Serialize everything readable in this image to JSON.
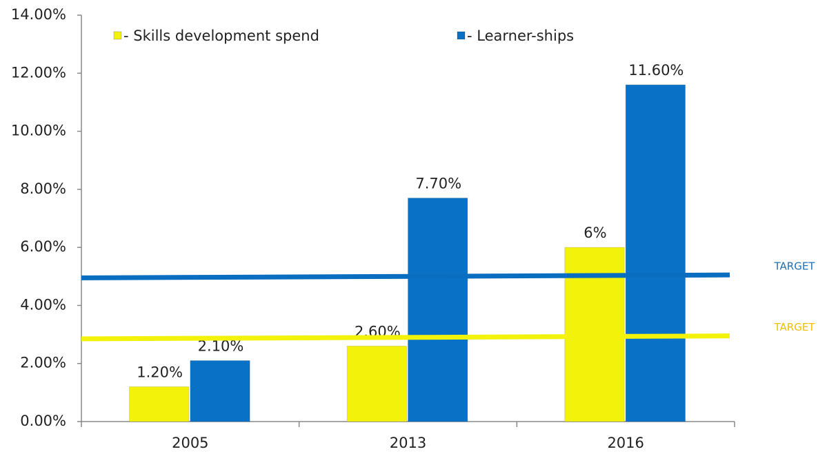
{
  "chart_data": {
    "type": "bar",
    "categories": [
      "2005",
      "2013",
      "2016"
    ],
    "series": [
      {
        "name": "- Skills development spend",
        "color": "#f2f20a",
        "values": [
          1.2,
          2.6,
          6
        ],
        "value_labels": [
          "1.20%",
          "2.60%",
          "6%"
        ]
      },
      {
        "name": "- Learner-ships",
        "color": "#0a72c6",
        "values": [
          2.1,
          7.7,
          11.6
        ],
        "value_labels": [
          "2.10%",
          "7.70%",
          "11.60%"
        ]
      }
    ],
    "ylim": [
      0,
      14
    ],
    "yticks": [
      {
        "value": 0,
        "label": "0.00%"
      },
      {
        "value": 2,
        "label": "2.00%"
      },
      {
        "value": 4,
        "label": "4.00%"
      },
      {
        "value": 6,
        "label": "6.00%"
      },
      {
        "value": 8,
        "label": "8.00%"
      },
      {
        "value": 10,
        "label": "10.00%"
      },
      {
        "value": 12,
        "label": "12.00%"
      },
      {
        "value": 14,
        "label": "14.00%"
      }
    ],
    "target_lines": [
      {
        "label": "TARGET",
        "color": "#0a6ec0",
        "start": 4.95,
        "end": 5.05
      },
      {
        "label": "TARGET",
        "color": "#f2f20a",
        "start": 2.85,
        "end": 2.95
      }
    ]
  }
}
